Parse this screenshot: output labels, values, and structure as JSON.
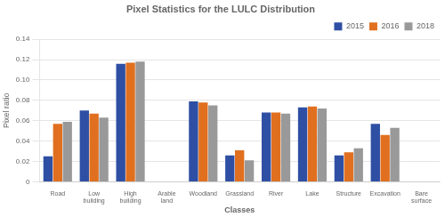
{
  "chart_data": {
    "type": "bar",
    "title": "Pixel Statistics for the LULC Distribution",
    "xlabel": "Classes",
    "ylabel": "Pixel ratio",
    "categories": [
      "Road",
      "Low\nbuilding",
      "High\nbuilding",
      "Arable\nland",
      "Woodland",
      "Grassland",
      "River",
      "Lake",
      "Structure",
      "Excavation",
      "Bare\nsurface"
    ],
    "series": [
      {
        "name": "2015",
        "color": "#2E4FA3",
        "values": [
          0.025,
          0.07,
          0.116,
          0.0,
          0.079,
          0.026,
          0.068,
          0.073,
          0.026,
          0.057,
          0.0
        ]
      },
      {
        "name": "2016",
        "color": "#E07020",
        "values": [
          0.057,
          0.067,
          0.117,
          0.0,
          0.078,
          0.031,
          0.068,
          0.074,
          0.029,
          0.046,
          0.0
        ]
      },
      {
        "name": "2018",
        "color": "#999999",
        "values": [
          0.059,
          0.063,
          0.118,
          0.0,
          0.075,
          0.021,
          0.067,
          0.072,
          0.033,
          0.053,
          0.0
        ]
      }
    ],
    "ylim": [
      0,
      0.14
    ],
    "yticks": [
      0,
      0.02,
      0.04,
      0.06,
      0.08,
      {
        "value": 0.1,
        "label": "0.10"
      },
      0.12,
      0.14
    ],
    "grid": true,
    "legend": "upper right"
  }
}
